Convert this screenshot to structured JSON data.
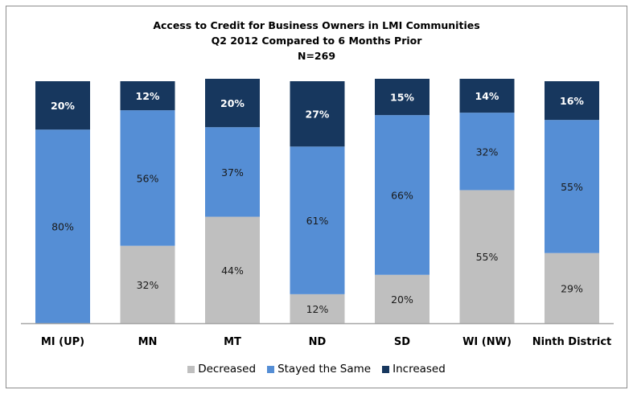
{
  "chart_data": {
    "type": "bar",
    "stacked": true,
    "title": "Access to Credit for Business Owners in LMI Communities",
    "subtitle": "Q2 2012 Compared to 6 Months Prior",
    "note": "N=269",
    "xlabel": "",
    "ylabel": "",
    "ylim": [
      0,
      100
    ],
    "categories": [
      "MI (UP)",
      "MN",
      "MT",
      "ND",
      "SD",
      "WI (NW)",
      "Ninth District"
    ],
    "series": [
      {
        "name": "Decreased",
        "color": "#bfbfbf",
        "values": [
          0,
          32,
          44,
          12,
          20,
          55,
          29
        ],
        "labels": [
          "",
          "32%",
          "44%",
          "12%",
          "20%",
          "55%",
          "29%"
        ]
      },
      {
        "name": "Stayed the Same",
        "color": "#558ed5",
        "values": [
          80,
          56,
          37,
          61,
          66,
          32,
          55
        ],
        "labels": [
          "80%",
          "56%",
          "37%",
          "61%",
          "66%",
          "32%",
          "55%"
        ]
      },
      {
        "name": "Increased",
        "color": "#17375e",
        "values": [
          20,
          12,
          20,
          27,
          15,
          14,
          16
        ],
        "labels": [
          "20%",
          "12%",
          "20%",
          "27%",
          "15%",
          "14%",
          "16%"
        ]
      }
    ],
    "legend_position": "bottom",
    "grid": false
  }
}
